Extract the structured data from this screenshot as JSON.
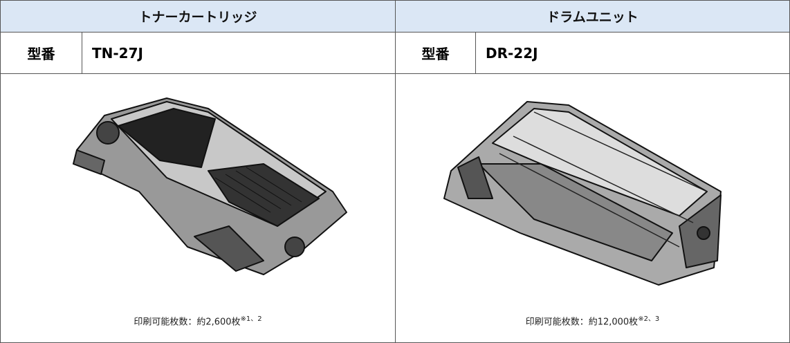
{
  "columns": [
    {
      "title": "トナーカートリッジ",
      "model_label": "型番",
      "model": "TN-27J",
      "caption": "印刷可能枚数：約2,600枚",
      "caption_note": "※1、2"
    },
    {
      "title": "ドラムユニット",
      "model_label": "型番",
      "model": "DR-22J",
      "caption": "印刷可能枚数：約12,000枚",
      "caption_note": "※2、3"
    }
  ]
}
